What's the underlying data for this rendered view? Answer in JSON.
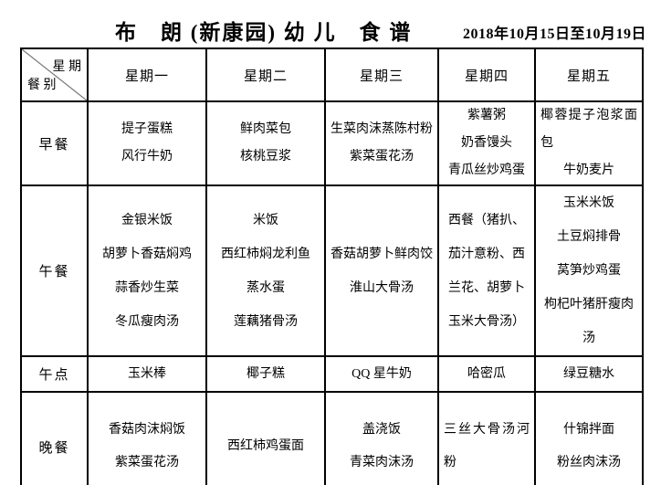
{
  "page": {
    "title": "布　朗 (新康园) 幼 儿　食 谱",
    "date_range": "2018年10月15日至10月19日"
  },
  "table": {
    "corner": {
      "top_label": "星 期",
      "bottom_label": "餐 别"
    },
    "day_headers": [
      "星期一",
      "星期二",
      "星期三",
      "星期四",
      "星期五"
    ],
    "rows": [
      {
        "meal": "早餐",
        "cells": [
          [
            {
              "text": "提子蛋糕"
            },
            {
              "text": "风行牛奶"
            }
          ],
          [
            {
              "text": "鲜肉菜包"
            },
            {
              "text": "核桃豆浆"
            }
          ],
          [
            {
              "text": "生菜肉沫蒸陈村粉"
            },
            {
              "text": "紫菜蛋花汤"
            }
          ],
          [
            {
              "text": "紫薯粥"
            },
            {
              "text": "奶香馒头"
            },
            {
              "text": "青瓜丝炒鸡蛋"
            }
          ],
          [
            {
              "text": "椰蓉提子泡浆面包",
              "align": "justify"
            },
            {
              "text": "牛奶麦片"
            }
          ]
        ]
      },
      {
        "meal": "午餐",
        "cells": [
          [
            {
              "text": "金银米饭"
            },
            {
              "text": "胡萝卜香菇焖鸡"
            },
            {
              "text": "蒜香炒生菜"
            },
            {
              "text": "冬瓜瘦肉汤"
            }
          ],
          [
            {
              "text": "米饭"
            },
            {
              "text": "西红柿焖龙利鱼"
            },
            {
              "text": "蒸水蛋"
            },
            {
              "text": "莲藕猪骨汤"
            }
          ],
          [
            {
              "text": "香菇胡萝卜鲜肉饺"
            },
            {
              "text": "淮山大骨汤"
            }
          ],
          [
            {
              "text": "西餐（猪扒、茄汁意粉、西兰花、胡萝卜玉米大骨汤）"
            }
          ],
          [
            {
              "text": "玉米米饭"
            },
            {
              "text": "土豆焖排骨"
            },
            {
              "text": "莴笋炒鸡蛋"
            },
            {
              "text": "枸杞叶猪肝瘦肉汤"
            }
          ]
        ]
      },
      {
        "meal": "午点",
        "cells": [
          [
            {
              "text": "玉米棒"
            }
          ],
          [
            {
              "text": "椰子糕"
            }
          ],
          [
            {
              "text": "QQ 星牛奶"
            }
          ],
          [
            {
              "text": "哈密瓜"
            }
          ],
          [
            {
              "text": "绿豆糖水"
            }
          ]
        ]
      },
      {
        "meal": "晚餐",
        "cells": [
          [
            {
              "text": "香菇肉沫焖饭"
            },
            {
              "text": "紫菜蛋花汤"
            }
          ],
          [
            {
              "text": "西红柿鸡蛋面"
            }
          ],
          [
            {
              "text": "盖浇饭"
            },
            {
              "text": "青菜肉沫汤"
            }
          ],
          [
            {
              "text": "三丝大骨汤河粉",
              "align": "justify"
            }
          ],
          [
            {
              "text": "什锦拌面"
            },
            {
              "text": "粉丝肉沫汤"
            }
          ]
        ]
      }
    ]
  }
}
